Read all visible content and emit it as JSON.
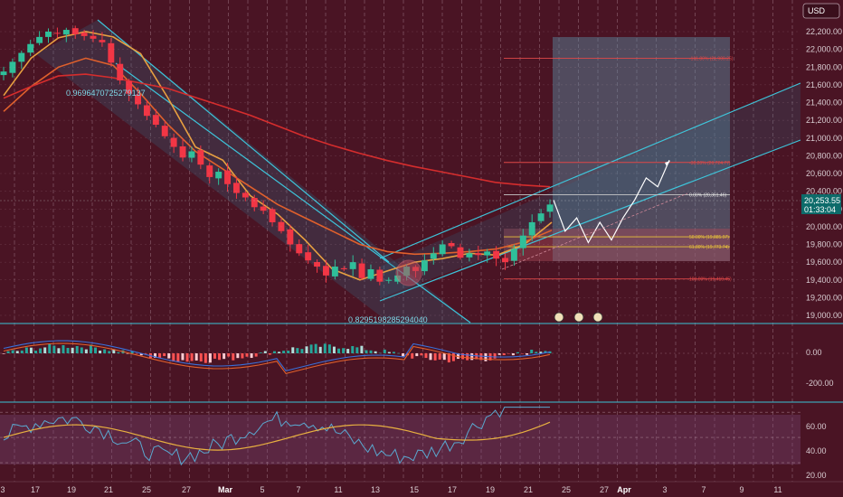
{
  "header": {
    "currency": "USD"
  },
  "price_label": {
    "value": "20,253.55",
    "countdown": "01:33:04"
  },
  "chart_data": [
    {
      "type": "candlestick",
      "title": "",
      "ylim": [
        18900,
        22300
      ],
      "y_ticks": [
        19000,
        19200,
        19400,
        19600,
        19800,
        20000,
        20200,
        20400,
        20600,
        20800,
        21000,
        21200,
        21400,
        21600,
        21800,
        22000,
        22200
      ],
      "y_tick_labels": [
        "19,000.00",
        "19,200.00",
        "19,400.00",
        "19,600.00",
        "19,800.00",
        "20,000.00",
        "20,200.00",
        "20,400.00",
        "20,600.00",
        "20,800.00",
        "21,000.00",
        "21,200.00",
        "21,400.00",
        "21,600.00",
        "21,800.00",
        "22,000.00",
        "22,200.00"
      ],
      "x_tick_labels": [
        "3",
        "17",
        "19",
        "21",
        "25",
        "27",
        "Mar",
        "5",
        "7",
        "11",
        "13",
        "15",
        "17",
        "19",
        "21",
        "25",
        "27",
        "Apr",
        "3",
        "7",
        "9",
        "11"
      ],
      "close_series": [
        21750,
        21860,
        21960,
        22060,
        22140,
        22200,
        22180,
        22220,
        22170,
        22150,
        22120,
        22080,
        21850,
        21650,
        21500,
        21380,
        21250,
        21150,
        21020,
        20900,
        20780,
        20850,
        20700,
        20560,
        20620,
        20480,
        20380,
        20330,
        20220,
        20180,
        20050,
        19950,
        19800,
        19700,
        19620,
        19550,
        19450,
        19550,
        19520,
        19600,
        19420,
        19520,
        19380,
        19400,
        19450,
        19550,
        19500,
        19620,
        19700,
        19800,
        19780,
        19650,
        19700,
        19680,
        19720,
        19640,
        19600,
        19750,
        19900,
        20050,
        20150,
        20250
      ],
      "moving_averages": [
        {
          "color": "#e8a040",
          "values": [
            21480,
            21900,
            22130,
            22200,
            22140,
            21950,
            21450,
            20900,
            20750,
            20350,
            20140,
            19850,
            19520,
            19400,
            19500,
            19600,
            19640,
            19700,
            19680,
            19800,
            20050
          ]
        },
        {
          "color": "#e0602c",
          "values": [
            21300,
            21580,
            21800,
            21900,
            21820,
            21500,
            21150,
            20850,
            20650,
            20450,
            20250,
            20100,
            19950,
            19800,
            19720,
            19690,
            19700,
            19720,
            19750,
            19830,
            19960
          ]
        },
        {
          "color": "#d52d2d",
          "values": [
            21450,
            21580,
            21700,
            21720,
            21680,
            21620,
            21560,
            21460,
            21360,
            21260,
            21140,
            21020,
            20920,
            20830,
            20750,
            20680,
            20620,
            20560,
            20500,
            20470,
            20450
          ]
        }
      ],
      "annotations": {
        "swing_high_value": "0.9696470725279137",
        "swing_low_value": "0.8295198285294040",
        "last_price": "20,253.55"
      },
      "fib_levels": [
        {
          "label": "-161.80% (21,900.25)",
          "value": 21900.25,
          "color": "#e04848"
        },
        {
          "label": "-38.20% (20,724.77)",
          "value": 20724.77,
          "color": "#e04848"
        },
        {
          "label": "0.00% (20,361.46)",
          "value": 20361.46,
          "color": "#c8c8c8"
        },
        {
          "label": "50.00% (19,885.97)",
          "value": 19885.97,
          "color": "#e8c23a"
        },
        {
          "label": "61.80% (19,773.74)",
          "value": 19773.74,
          "color": "#e8c23a"
        },
        {
          "label": "100.00% (19,410.45)",
          "value": 19410.45,
          "color": "#e04848"
        }
      ],
      "projection_path": [
        20300,
        19950,
        20100,
        19820,
        20050,
        19850,
        20100,
        20300,
        20550,
        20450,
        20750
      ]
    },
    {
      "type": "histogram",
      "title": "",
      "ylim": [
        -350,
        200
      ],
      "y_tick_labels": [
        "0.00",
        "-200.00"
      ],
      "y_ticks": [
        0,
        -200
      ]
    },
    {
      "type": "line",
      "title": "",
      "ylim": [
        15,
        78
      ],
      "y_tick_labels": [
        "60.00",
        "40.00",
        "20.00"
      ],
      "y_ticks": [
        60,
        40,
        20
      ],
      "bands": [
        70,
        50,
        30
      ]
    }
  ]
}
